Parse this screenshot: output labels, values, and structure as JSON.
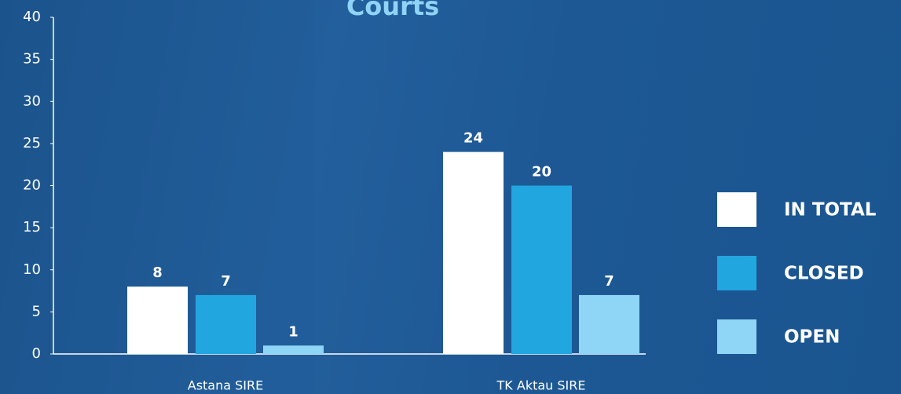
{
  "chart_data": {
    "type": "bar",
    "title": "Courts",
    "categories": [
      "Astana SIRE",
      "TK Aktau SIRE"
    ],
    "series": [
      {
        "name": "IN TOTAL",
        "color": "#ffffff",
        "values": [
          8,
          24
        ]
      },
      {
        "name": "CLOSED",
        "color": "#22a6e0",
        "values": [
          7,
          20
        ]
      },
      {
        "name": "OPEN",
        "color": "#8fd6f6",
        "values": [
          1,
          7
        ]
      }
    ],
    "ylim": [
      0,
      40
    ],
    "yticks": [
      0,
      5,
      10,
      15,
      20,
      25,
      30,
      35,
      40
    ],
    "legend": "right"
  }
}
